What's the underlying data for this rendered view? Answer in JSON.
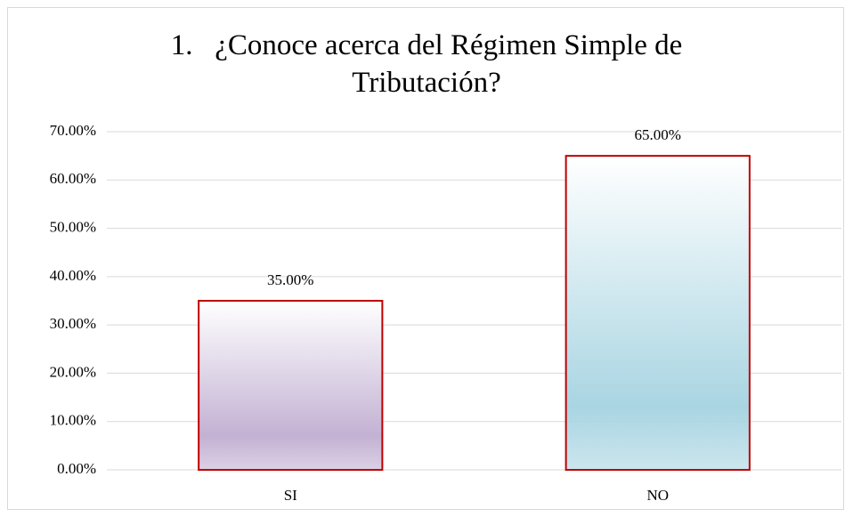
{
  "chart_data": {
    "type": "bar",
    "title": "1.   ¿Conoce acerca del Régimen Simple de Tributación?",
    "categories": [
      "SI",
      "NO"
    ],
    "values": [
      35,
      65
    ],
    "value_labels": [
      "35.00%",
      "65.00%"
    ],
    "colors": [
      "#c3b1d3",
      "#a9d5e2"
    ],
    "border_color": "#c00000",
    "ylim": [
      0,
      70
    ],
    "yticks": [
      {
        "value": 0,
        "label": "0.00%"
      },
      {
        "value": 10,
        "label": "10.00%"
      },
      {
        "value": 20,
        "label": "20.00%"
      },
      {
        "value": 30,
        "label": "30.00%"
      },
      {
        "value": 40,
        "label": "40.00%"
      },
      {
        "value": 50,
        "label": "50.00%"
      },
      {
        "value": 60,
        "label": "60.00%"
      },
      {
        "value": 70,
        "label": "70.00%"
      }
    ],
    "grid": true
  }
}
